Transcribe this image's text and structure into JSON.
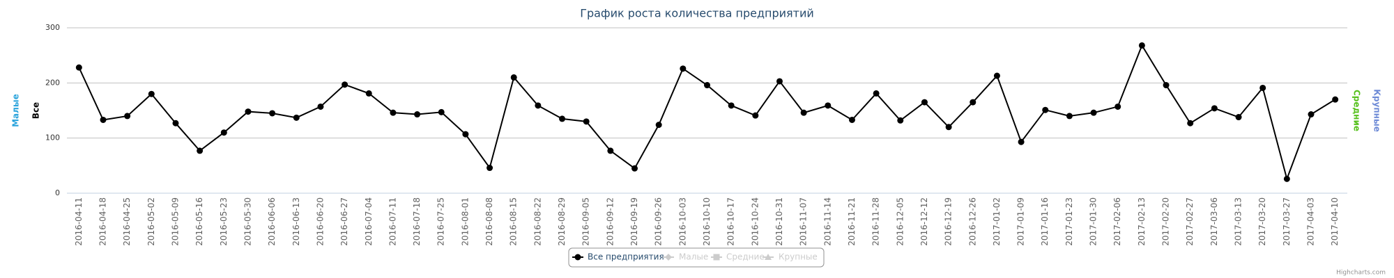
{
  "chart_data": {
    "type": "line",
    "title": "График роста количества предприятий",
    "categories": [
      "2016-04-11",
      "2016-04-18",
      "2016-04-25",
      "2016-05-02",
      "2016-05-09",
      "2016-05-16",
      "2016-05-23",
      "2016-05-30",
      "2016-06-06",
      "2016-06-13",
      "2016-06-20",
      "2016-06-27",
      "2016-07-04",
      "2016-07-11",
      "2016-07-18",
      "2016-07-25",
      "2016-08-01",
      "2016-08-08",
      "2016-08-15",
      "2016-08-22",
      "2016-08-29",
      "2016-09-05",
      "2016-09-12",
      "2016-09-19",
      "2016-09-26",
      "2016-10-03",
      "2016-10-10",
      "2016-10-17",
      "2016-10-24",
      "2016-10-31",
      "2016-11-07",
      "2016-11-14",
      "2016-11-21",
      "2016-11-28",
      "2016-12-05",
      "2016-12-12",
      "2016-12-19",
      "2016-12-26",
      "2017-01-02",
      "2017-01-09",
      "2017-01-16",
      "2017-01-23",
      "2017-01-30",
      "2017-02-06",
      "2017-02-13",
      "2017-02-20",
      "2017-02-27",
      "2017-03-06",
      "2017-03-13",
      "2017-03-20",
      "2017-03-27",
      "2017-04-03",
      "2017-04-10"
    ],
    "series": [
      {
        "name": "Все предприятия",
        "color": "#000000",
        "visible": true,
        "values": [
          228,
          133,
          140,
          180,
          127,
          77,
          110,
          148,
          145,
          137,
          157,
          197,
          181,
          146,
          143,
          147,
          107,
          46,
          210,
          159,
          135,
          130,
          77,
          45,
          124,
          226,
          196,
          159,
          141,
          203,
          146,
          159,
          133,
          181,
          132,
          165,
          120,
          165,
          213,
          93,
          151,
          140,
          146,
          157,
          268,
          196,
          127,
          154,
          138,
          191,
          26,
          143,
          170
        ]
      },
      {
        "name": "Малые",
        "color": "#2ca4dc",
        "visible": false
      },
      {
        "name": "Средние",
        "color": "#55c01b",
        "visible": false
      },
      {
        "name": "Крупные",
        "color": "#6d8ad6",
        "visible": false
      }
    ],
    "axis_titles": [
      {
        "text": "Малые",
        "color": "#2ca4dc",
        "side": "left"
      },
      {
        "text": "Все",
        "color": "#000000",
        "side": "left"
      },
      {
        "text": "Средние",
        "color": "#55c01b",
        "side": "right"
      },
      {
        "text": "Крупные",
        "color": "#6d8ad6",
        "side": "right"
      }
    ],
    "ylim": [
      0,
      300
    ],
    "yticks": [
      0,
      100,
      200,
      300
    ],
    "grid": true,
    "credits": "Highcharts.com"
  }
}
